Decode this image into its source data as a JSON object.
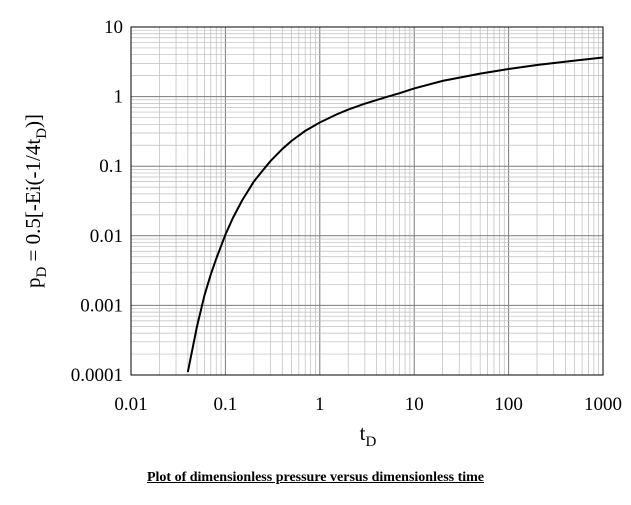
{
  "chart_data": {
    "type": "line",
    "x_scale": "log",
    "y_scale": "log",
    "xlim": [
      0.01,
      1000
    ],
    "ylim": [
      0.0001,
      10
    ],
    "x_ticks": [
      "0.01",
      "0.1",
      "1",
      "10",
      "100",
      "1000"
    ],
    "y_ticks": [
      "0.0001",
      "0.001",
      "0.01",
      "0.1",
      "1",
      "10"
    ],
    "grid": true,
    "xlabel": {
      "main": "t",
      "sub": "D"
    },
    "ylabel": {
      "p": "p",
      "p_sub": "D",
      "mid": " = 0.5[-Ei(-1/4t",
      "t_sub": "D",
      "end": ")]"
    },
    "series": [
      {
        "x": [
          0.04,
          0.05,
          0.06,
          0.07,
          0.08,
          0.1,
          0.12,
          0.15,
          0.2,
          0.25,
          0.3,
          0.4,
          0.5,
          0.7,
          1,
          1.5,
          2,
          3,
          5,
          7,
          10,
          20,
          50,
          100,
          200,
          500,
          1000
        ],
        "y": [
          0.00011,
          0.0005,
          0.0014,
          0.0028,
          0.0047,
          0.0104,
          0.018,
          0.032,
          0.06,
          0.088,
          0.118,
          0.176,
          0.23,
          0.322,
          0.425,
          0.554,
          0.65,
          0.79,
          0.98,
          1.12,
          1.31,
          1.68,
          2.14,
          2.49,
          2.84,
          3.29,
          3.64
        ]
      }
    ]
  },
  "caption": "Plot of dimensionless pressure versus dimensionless time"
}
